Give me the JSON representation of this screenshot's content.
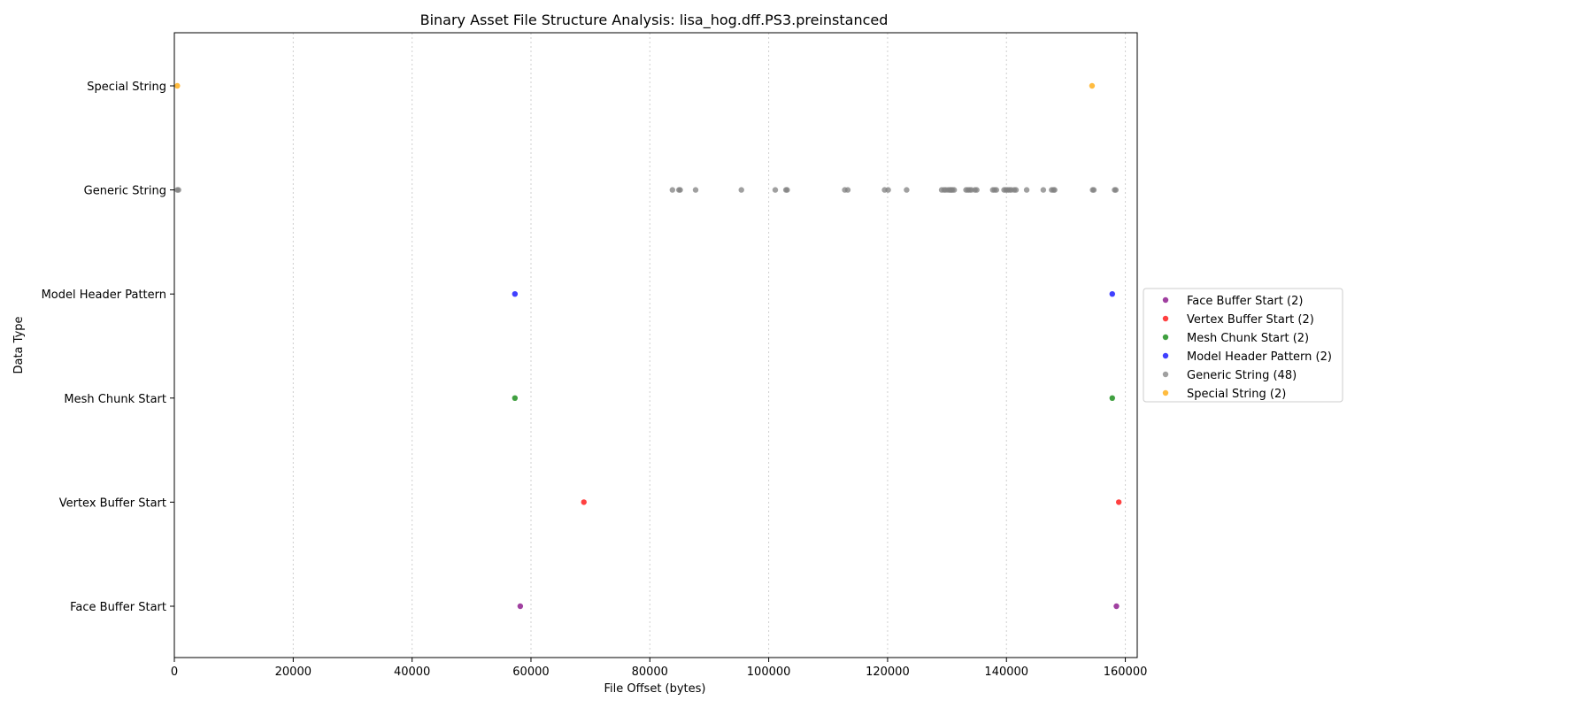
{
  "chart_data": {
    "type": "scatter",
    "title": "Binary Asset File Structure Analysis: lisa_hog.dff.PS3.preinstanced",
    "xlabel": "File Offset (bytes)",
    "ylabel": "Data Type",
    "xlim": [
      0,
      162000
    ],
    "x_ticks": [
      0,
      20000,
      40000,
      60000,
      80000,
      100000,
      120000,
      140000,
      160000
    ],
    "x_tick_labels": [
      "0",
      "20000",
      "40000",
      "60000",
      "80000",
      "100000",
      "120000",
      "140000",
      "160000"
    ],
    "categories": [
      "Face Buffer Start",
      "Vertex Buffer Start",
      "Mesh Chunk Start",
      "Model Header Pattern",
      "Generic String",
      "Special String"
    ],
    "grid": "vertical dotted lines at x ticks",
    "legend_position": "center-right, outside plot",
    "series": [
      {
        "name": "Face Buffer Start",
        "legend_label": "Face Buffer Start (2)",
        "category": "Face Buffer Start",
        "color": "#800080",
        "x": [
          58200,
          158500
        ]
      },
      {
        "name": "Vertex Buffer Start",
        "legend_label": "Vertex Buffer Start (2)",
        "category": "Vertex Buffer Start",
        "color": "#ff0000",
        "x": [
          68900,
          158900
        ]
      },
      {
        "name": "Mesh Chunk Start",
        "legend_label": "Mesh Chunk Start (2)",
        "category": "Mesh Chunk Start",
        "color": "#008000",
        "x": [
          57300,
          157800
        ]
      },
      {
        "name": "Model Header Pattern",
        "legend_label": "Model Header Pattern (2)",
        "category": "Model Header Pattern",
        "color": "#0000ff",
        "x": [
          57300,
          157800
        ]
      },
      {
        "name": "Generic String",
        "legend_label": "Generic String (48)",
        "category": "Generic String",
        "color": "#808080",
        "x": [
          500,
          700,
          83800,
          84900,
          85100,
          87700,
          95400,
          101100,
          102900,
          103100,
          112800,
          113300,
          119500,
          120100,
          123200,
          129100,
          129500,
          129800,
          130200,
          130500,
          130900,
          131200,
          133200,
          133500,
          133800,
          134100,
          134700,
          137700,
          138000,
          138300,
          139600,
          139900,
          140200,
          140500,
          140800,
          141300,
          141600,
          143400,
          146200,
          147600,
          147900,
          148100,
          154500,
          154700,
          158200,
          158400,
          135000,
          130700
        ]
      },
      {
        "name": "Special String",
        "legend_label": "Special String (2)",
        "category": "Special String",
        "color": "#ffa500",
        "x": [
          500,
          154400
        ]
      }
    ]
  }
}
